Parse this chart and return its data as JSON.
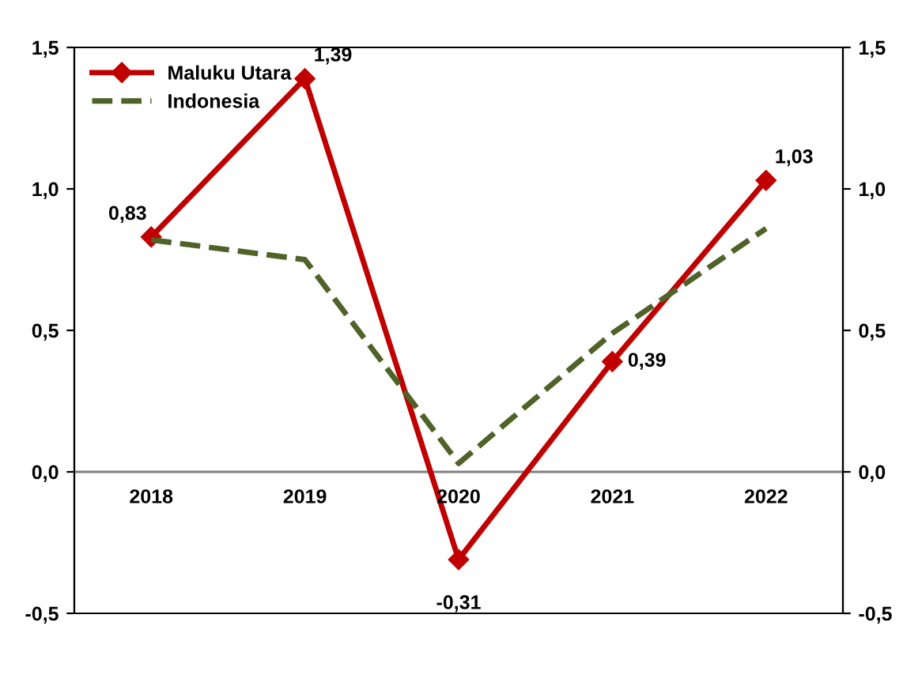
{
  "chart_data": {
    "type": "line",
    "categories": [
      "2018",
      "2019",
      "2020",
      "2021",
      "2022"
    ],
    "series": [
      {
        "name": "Maluku Utara",
        "color": "#c00000",
        "values": [
          0.83,
          1.39,
          -0.31,
          0.39,
          1.03
        ],
        "value_labels": [
          "0,83",
          "1,39",
          "-0,31",
          "0,39",
          "1,03"
        ],
        "marker": "diamond",
        "line_style": "solid"
      },
      {
        "name": "Indonesia",
        "color": "#4f6228",
        "values": [
          0.82,
          0.75,
          0.03,
          0.49,
          0.86
        ],
        "marker": "none",
        "line_style": "dashed"
      }
    ],
    "ylim": [
      -0.5,
      1.5
    ],
    "yticks": [
      {
        "value": -0.5,
        "label": "-0,5"
      },
      {
        "value": 0,
        "label": "0,0"
      },
      {
        "value": 0.5,
        "label": "0,5"
      },
      {
        "value": 1,
        "label": "1,0"
      },
      {
        "value": 1.5,
        "label": "1,5"
      }
    ],
    "y2lim": [
      -0.5,
      1.5
    ],
    "y2ticks": [
      {
        "value": -0.5,
        "label": "-0,5"
      },
      {
        "value": 0,
        "label": "0,0"
      },
      {
        "value": 0.5,
        "label": "0,5"
      },
      {
        "value": 1,
        "label": "1,0"
      },
      {
        "value": 1.5,
        "label": "1,5"
      }
    ],
    "legend": "top left",
    "grid": false
  }
}
